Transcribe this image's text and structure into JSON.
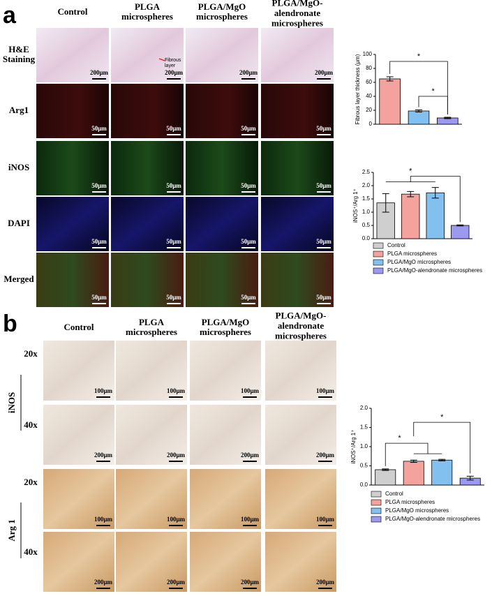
{
  "panel_a": {
    "label": "a",
    "columns": [
      "Control",
      "PLGA\nmicrospheres",
      "PLGA/MgO\nmicrospheres",
      "PLGA/MgO-\nalendronate\nmicrospheres"
    ],
    "rows": [
      {
        "label": "H&E\nStaining",
        "scale_bar": "200μm"
      },
      {
        "label": "Arg1",
        "scale_bar": "50μm"
      },
      {
        "label": "iNOS",
        "scale_bar": "50μm"
      },
      {
        "label": "DAPI",
        "scale_bar": "50μm"
      },
      {
        "label": "Merged",
        "scale_bar": "50μm"
      }
    ],
    "annotation": "Fibrous\nlayer"
  },
  "panel_b": {
    "label": "b",
    "columns": [
      "Control",
      "PLGA\nmicrospheres",
      "PLGA/MgO\nmicrospheres",
      "PLGA/MgO-\nalendronate\nmicrospheres"
    ],
    "groups": [
      "iNOS",
      "Arg 1"
    ],
    "rows": [
      {
        "magnification": "20x",
        "scale_bar": "100μm"
      },
      {
        "magnification": "40x",
        "scale_bar": "200μm"
      },
      {
        "magnification": "20x",
        "scale_bar": "100μm"
      },
      {
        "magnification": "40x",
        "scale_bar": "200μm"
      }
    ]
  },
  "chart_data": [
    {
      "type": "bar",
      "ylabel": "Fibrous layer thickness (μm)",
      "values": [
        65,
        19,
        9
      ],
      "errors": [
        3,
        1.5,
        1
      ],
      "colors": [
        "#f4a29d",
        "#82c0f0",
        "#9b9af0"
      ],
      "ylim": [
        0,
        100
      ],
      "yticks": [
        0,
        20,
        40,
        60,
        80,
        100
      ],
      "annotations": [
        "*",
        "*"
      ]
    },
    {
      "type": "bar",
      "ylabel": "iNOS⁺/Arg 1⁺",
      "categories": [
        "Control",
        "PLGA microspheres",
        "PLGA/MgO microspheres",
        "PLGA/MgO-alendronate microspheres"
      ],
      "values": [
        1.35,
        1.68,
        1.73,
        0.5
      ],
      "errors": [
        0.35,
        0.1,
        0.2,
        0.02
      ],
      "colors": [
        "#cfcfcf",
        "#f4a29d",
        "#82c0f0",
        "#9b9af0"
      ],
      "ylim": [
        0,
        2.5
      ],
      "yticks": [
        {
          "value": 0,
          "label": "0.0"
        },
        {
          "value": 0.5,
          "label": "0.5"
        },
        {
          "value": 1,
          "label": "1.0"
        },
        {
          "value": 1.5,
          "label": "1.5"
        },
        {
          "value": 2,
          "label": "2.0"
        },
        {
          "value": 2.5,
          "label": "2.5"
        }
      ],
      "annotations": [
        "*"
      ]
    },
    {
      "type": "bar",
      "ylabel": "iNOS⁺/Arg 1⁺",
      "categories": [
        "Control",
        "PLGA microspheres",
        "PLGA/MgO microspheres",
        "PLGA/MgO-alendronate microspheres"
      ],
      "values": [
        0.4,
        0.62,
        0.65,
        0.18
      ],
      "errors": [
        0.02,
        0.03,
        0.02,
        0.05
      ],
      "colors": [
        "#cfcfcf",
        "#f4a29d",
        "#82c0f0",
        "#9b9af0"
      ],
      "ylim": [
        0,
        2
      ],
      "yticks": [
        {
          "value": 0,
          "label": "0.0"
        },
        {
          "value": 0.5,
          "label": "0.5"
        },
        {
          "value": 1,
          "label": "1.0"
        },
        {
          "value": 1.5,
          "label": "1.5"
        },
        {
          "value": 2,
          "label": "2.0"
        }
      ],
      "annotations": [
        "*",
        "*"
      ]
    }
  ]
}
